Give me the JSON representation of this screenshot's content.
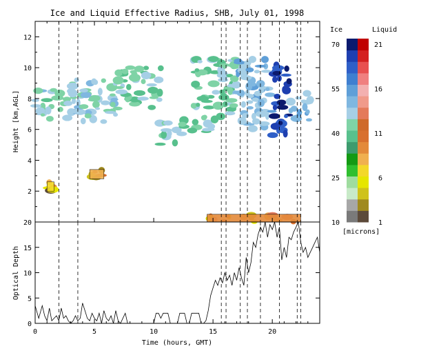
{
  "title": "Ice and Liquid Effective Radius, SHB, July 01, 1998",
  "colors": {
    "ice_scale": [
      "#7a7a7a",
      "#a7a7a7",
      "#c8eac8",
      "#9fdc9f",
      "#2fbf2f",
      "#149a14",
      "#3d9b6e",
      "#58c08d",
      "#7fd3a6",
      "#a6cfe6",
      "#7fb7e0",
      "#5f9fd8",
      "#3f7fd0",
      "#2f5fc8",
      "#1e3fb0",
      "#0b1a6e"
    ],
    "liquid_scale": [
      "#5c4a3a",
      "#a08a1e",
      "#cfc21c",
      "#e6e600",
      "#f3d82a",
      "#f0b050",
      "#e38a3a",
      "#d8702e",
      "#cf6a2a",
      "#e47a5a",
      "#f09a8a",
      "#f3b0b0",
      "#f08080",
      "#e85050",
      "#d42020",
      "#c00000"
    ]
  },
  "chart_data": [
    {
      "type": "heatmap",
      "title": "Ice and Liquid Effective Radius, SHB, July 01, 1998",
      "xlabel": "",
      "ylabel": "Height [km,AGL]",
      "xlim": [
        0,
        24
      ],
      "ylim": [
        0,
        13
      ],
      "y_ticks": [
        "2",
        "4",
        "6",
        "8",
        "10",
        "12"
      ],
      "vlines": [
        2.0,
        3.6,
        15.7,
        16.1,
        17.3,
        17.9,
        19.0,
        20.6,
        22.1,
        22.4
      ],
      "cloud_regions": [
        {
          "phase": "ice",
          "x0": 0.0,
          "x1": 2.8,
          "y0": 6.6,
          "y1": 8.6,
          "radius": 44
        },
        {
          "phase": "ice",
          "x0": 2.8,
          "x1": 7.0,
          "y0": 6.4,
          "y1": 9.2,
          "radius": 46
        },
        {
          "phase": "ice",
          "x0": 7.0,
          "x1": 10.6,
          "y0": 7.4,
          "y1": 10.0,
          "radius": 42
        },
        {
          "phase": "ice",
          "x0": 10.2,
          "x1": 12.6,
          "y0": 5.0,
          "y1": 6.6,
          "radius": 44
        },
        {
          "phase": "ice",
          "x0": 12.8,
          "x1": 15.2,
          "y0": 5.8,
          "y1": 6.6,
          "radius": 42
        },
        {
          "phase": "ice",
          "x0": 13.2,
          "x1": 17.0,
          "y0": 6.6,
          "y1": 10.6,
          "radius": 41
        },
        {
          "phase": "ice",
          "x0": 17.0,
          "x1": 20.0,
          "y0": 6.0,
          "y1": 10.6,
          "radius": 50
        },
        {
          "phase": "ice",
          "x0": 20.0,
          "x1": 21.5,
          "y0": 5.6,
          "y1": 10.2,
          "radius": 66
        },
        {
          "phase": "ice",
          "x0": 21.5,
          "x1": 23.2,
          "y0": 6.2,
          "y1": 8.4,
          "radius": 48
        },
        {
          "phase": "liquid",
          "x0": 1.0,
          "x1": 1.6,
          "y0": 2.0,
          "y1": 2.6,
          "radius": 6
        },
        {
          "phase": "liquid",
          "x0": 4.6,
          "x1": 5.8,
          "y0": 2.8,
          "y1": 3.4,
          "radius": 7
        },
        {
          "phase": "liquid",
          "x0": 14.5,
          "x1": 22.4,
          "y0": 0.0,
          "y1": 0.5,
          "radius": 9
        }
      ]
    },
    {
      "type": "line",
      "xlabel": "Time (hours, GMT)",
      "ylabel": "Optical Depth",
      "xlim": [
        0,
        24
      ],
      "ylim": [
        0,
        20
      ],
      "x_ticks": [
        "0",
        "5",
        "10",
        "15",
        "20"
      ],
      "y_ticks": [
        "0",
        "5",
        "10",
        "15",
        "20"
      ],
      "vlines": [
        2.0,
        3.6,
        15.7,
        16.1,
        17.3,
        17.9,
        19.0,
        20.6,
        22.1,
        22.4
      ],
      "series": [
        {
          "x": [
            0.0,
            0.3,
            0.6,
            0.8,
            1.0,
            1.2,
            1.4,
            1.6,
            1.8,
            2.0,
            2.2,
            2.4,
            2.6,
            2.8,
            3.0,
            3.2,
            3.4,
            3.6,
            3.8,
            4.0,
            4.2,
            4.4,
            4.6,
            4.8,
            5.0,
            5.2,
            5.4,
            5.6,
            5.8,
            6.0,
            6.2,
            6.4,
            6.6,
            6.8,
            7.0,
            7.2,
            7.4,
            7.6,
            7.8,
            8.0,
            8.2,
            8.4,
            8.6,
            8.8,
            9.0,
            9.2,
            9.4,
            9.6,
            9.8,
            10.0,
            10.2,
            10.4,
            10.6,
            10.8,
            11.0,
            11.2,
            11.4,
            11.6,
            11.8,
            12.0,
            12.2,
            12.4,
            12.6,
            12.8,
            13.0,
            13.2,
            13.4,
            13.6,
            13.8,
            14.0,
            14.2,
            14.4,
            14.6,
            14.8,
            15.0,
            15.2,
            15.4,
            15.6,
            15.8,
            16.0,
            16.2,
            16.4,
            16.6,
            16.8,
            17.0,
            17.2,
            17.4,
            17.6,
            17.8,
            18.0,
            18.2,
            18.4,
            18.6,
            18.8,
            19.0,
            19.2,
            19.4,
            19.6,
            19.8,
            20.0,
            20.2,
            20.4,
            20.6,
            20.8,
            21.0,
            21.2,
            21.4,
            21.6,
            21.8,
            22.0,
            22.2,
            22.4,
            22.6,
            22.8,
            23.0,
            23.2,
            23.4,
            23.6,
            23.8,
            24.0
          ],
          "y": [
            3.5,
            1.0,
            3.5,
            1.5,
            0.5,
            3.0,
            0.5,
            1.0,
            1.5,
            0.5,
            3.0,
            1.0,
            1.5,
            0.5,
            0.0,
            0.5,
            1.5,
            0.5,
            1.0,
            4.0,
            2.5,
            1.0,
            0.5,
            2.0,
            1.0,
            0.5,
            2.0,
            0.0,
            2.5,
            1.0,
            0.5,
            1.5,
            0.0,
            2.5,
            0.5,
            0.0,
            1.0,
            2.0,
            0.0,
            0.0,
            0.0,
            0.0,
            0.0,
            0.0,
            0.0,
            0.0,
            0.0,
            0.0,
            0.0,
            0.0,
            2.0,
            2.0,
            1.0,
            2.0,
            2.0,
            2.0,
            0.0,
            0.0,
            0.0,
            0.0,
            2.0,
            2.0,
            2.0,
            0.0,
            0.0,
            2.0,
            2.0,
            2.0,
            2.0,
            0.0,
            0.0,
            0.5,
            2.5,
            5.5,
            7.0,
            8.5,
            7.5,
            9.0,
            8.0,
            10.0,
            8.5,
            9.5,
            7.5,
            10.0,
            8.5,
            11.0,
            9.0,
            7.5,
            13.0,
            10.0,
            12.0,
            16.0,
            15.0,
            17.5,
            19.0,
            18.0,
            20.0,
            17.0,
            19.5,
            18.5,
            20.0,
            17.0,
            19.0,
            12.5,
            15.0,
            13.0,
            17.0,
            16.5,
            18.0,
            19.0,
            20.0,
            16.0,
            14.0,
            15.0,
            13.0,
            14.0,
            15.0,
            16.0,
            17.0,
            14.0
          ]
        }
      ]
    }
  ],
  "colorbar": {
    "ice_label": "Ice",
    "liquid_label": "Liquid",
    "ice_ticks": [
      "70",
      "55",
      "40",
      "25",
      "10"
    ],
    "liquid_ticks": [
      "21",
      "16",
      "11",
      "6",
      "1"
    ],
    "units": "[microns]"
  }
}
